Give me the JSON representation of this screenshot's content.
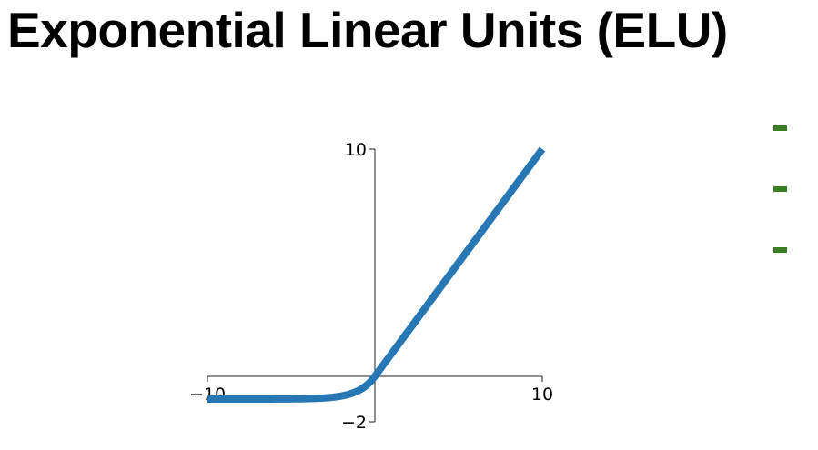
{
  "slide": {
    "title": "Exponential Linear Units (ELU)"
  },
  "chart_data": {
    "type": "line",
    "title": "",
    "xlabel": "",
    "ylabel": "",
    "xlim": [
      -10,
      10
    ],
    "ylim": [
      -2,
      10
    ],
    "x_ticks": [
      -10,
      10
    ],
    "x_tick_labels": [
      "−10",
      "10"
    ],
    "y_ticks": [
      -2,
      10
    ],
    "y_tick_labels": [
      "−2",
      "10"
    ],
    "grid": false,
    "alpha": 1,
    "series": [
      {
        "function": "elu",
        "color": "#2677b4"
      }
    ]
  },
  "bullets": {
    "count": 3,
    "color": "#3a7d22"
  }
}
